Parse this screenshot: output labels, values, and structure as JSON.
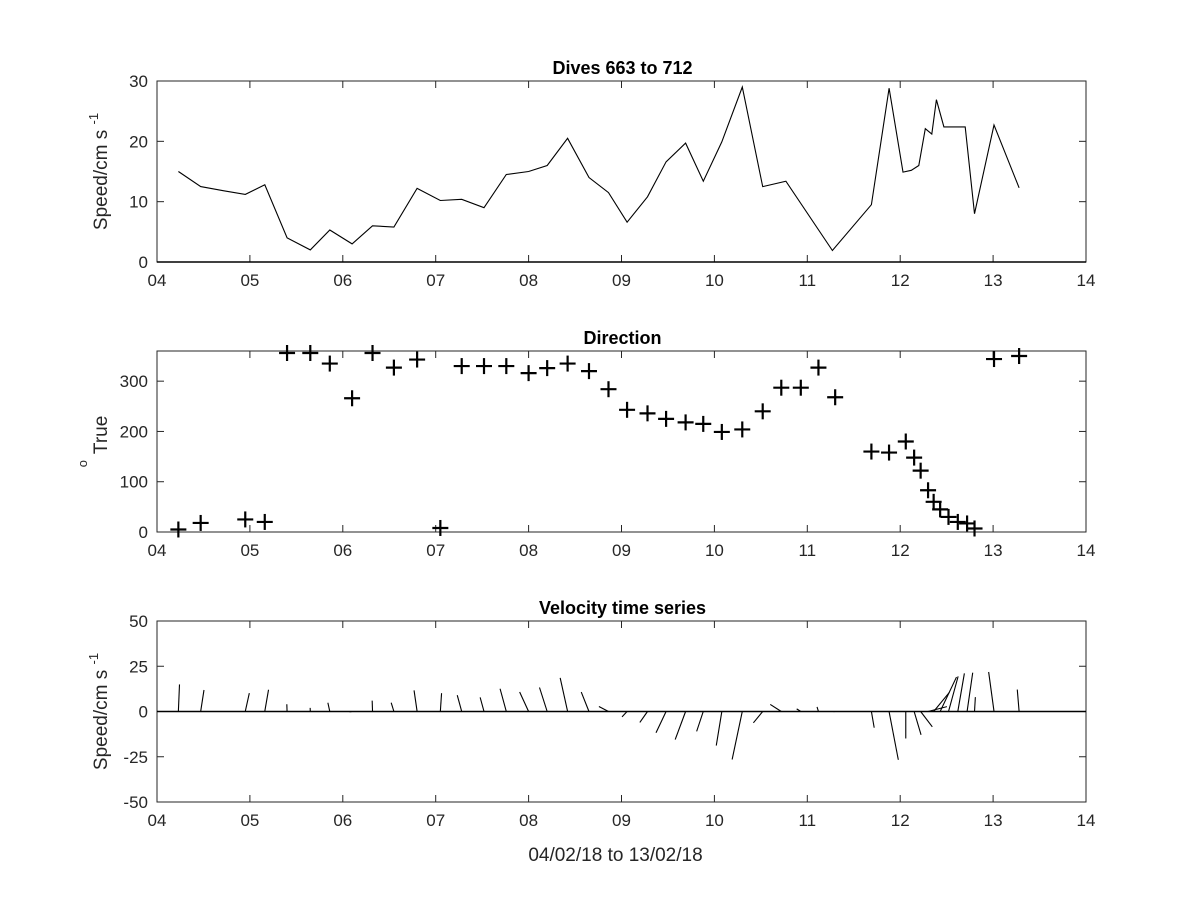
{
  "chart_data": [
    {
      "type": "line",
      "title": "Dives 663 to 712",
      "ylabel_main": "Speed/cm s",
      "ylabel_sup": "-1",
      "xlabel": "",
      "xlim": [
        4,
        14
      ],
      "ylim": [
        0,
        30
      ],
      "xticks": [
        4,
        5,
        6,
        7,
        8,
        9,
        10,
        11,
        12,
        13,
        14
      ],
      "xticklabels": [
        "04",
        "05",
        "06",
        "07",
        "08",
        "09",
        "10",
        "11",
        "12",
        "13",
        "14"
      ],
      "yticks": [
        0,
        10,
        20,
        30
      ],
      "yticklabels": [
        "0",
        "10",
        "20",
        "30"
      ],
      "zero_line": true,
      "series": [
        {
          "x": [
            4.23,
            4.47,
            4.72,
            4.95,
            5.16,
            5.4,
            5.65,
            5.86,
            6.1,
            6.32,
            6.55,
            6.8,
            7.05,
            7.28,
            7.52,
            7.76,
            8.0,
            8.2,
            8.42,
            8.65,
            8.86,
            9.06,
            9.28,
            9.48,
            9.69,
            9.88,
            10.08,
            10.3,
            10.52,
            10.77,
            11.27,
            11.69,
            11.88,
            12.03,
            12.12,
            12.2,
            12.27,
            12.34,
            12.39,
            12.47,
            12.55,
            12.7,
            12.8,
            13.01,
            13.28
          ],
          "y": [
            15,
            12.5,
            11.8,
            11.2,
            12.8,
            4,
            2,
            5.3,
            3,
            6,
            5.8,
            12.2,
            10.2,
            10.4,
            9,
            14.5,
            15,
            16,
            20.5,
            14,
            11.5,
            6.6,
            10.8,
            16.6,
            19.7,
            13.4,
            19.9,
            29,
            12.5,
            13.4,
            1.9,
            9.5,
            28.8,
            14.9,
            15.2,
            16,
            22.1,
            21.2,
            26.9,
            22.4,
            22.4,
            22.4,
            8,
            22.7,
            12.3
          ]
        }
      ]
    },
    {
      "type": "scatter",
      "title": "Direction",
      "ylabel_main": "True",
      "ylabel_sup": "o",
      "xlabel": "",
      "xlim": [
        4,
        14
      ],
      "ylim": [
        0,
        360
      ],
      "xticks": [
        4,
        5,
        6,
        7,
        8,
        9,
        10,
        11,
        12,
        13,
        14
      ],
      "xticklabels": [
        "04",
        "05",
        "06",
        "07",
        "08",
        "09",
        "10",
        "11",
        "12",
        "13",
        "14"
      ],
      "yticks": [
        0,
        100,
        200,
        300
      ],
      "yticklabels": [
        "0",
        "100",
        "200",
        "300"
      ],
      "marker": "+",
      "series": [
        {
          "x": [
            4.23,
            4.47,
            4.95,
            5.16,
            5.4,
            5.65,
            5.86,
            6.1,
            6.32,
            6.55,
            6.8,
            7.05,
            7.28,
            7.52,
            7.76,
            8.0,
            8.2,
            8.42,
            8.65,
            8.86,
            9.06,
            9.28,
            9.48,
            9.69,
            9.88,
            10.08,
            10.3,
            10.52,
            10.72,
            10.93,
            11.12,
            11.3,
            11.69,
            11.88,
            12.06,
            12.15,
            12.22,
            12.3,
            12.36,
            12.43,
            12.52,
            12.62,
            12.72,
            12.8,
            13.01,
            13.28
          ],
          "y": [
            5,
            18,
            25,
            20,
            356,
            356,
            335,
            266,
            356,
            327,
            343,
            8,
            330,
            330,
            330,
            316,
            326,
            335,
            320,
            284,
            243,
            236,
            225,
            218,
            215,
            199,
            204,
            240,
            287,
            287,
            327,
            268,
            160,
            158,
            180,
            148,
            122,
            83,
            60,
            45,
            30,
            20,
            17,
            7,
            344,
            350
          ]
        }
      ]
    },
    {
      "type": "line",
      "subtype": "stick-plot",
      "title": "Velocity time series",
      "ylabel_main": "Speed/cm s",
      "ylabel_sup": "-1",
      "xlabel": "04/02/18 to 13/02/18",
      "xlim": [
        4,
        14
      ],
      "ylim": [
        -50,
        50
      ],
      "xticks": [
        4,
        5,
        6,
        7,
        8,
        9,
        10,
        11,
        12,
        13,
        14
      ],
      "xticklabels": [
        "04",
        "05",
        "06",
        "07",
        "08",
        "09",
        "10",
        "11",
        "12",
        "13",
        "14"
      ],
      "yticks": [
        -50,
        -25,
        0,
        25,
        50
      ],
      "yticklabels": [
        "-50",
        "-25",
        "0",
        "25",
        "50"
      ],
      "zero_line": true,
      "stick_x_scale_days_per_unit": 0.00925,
      "series": [
        {
          "x": [
            4.23,
            4.47,
            4.95,
            5.16,
            5.4,
            5.65,
            5.86,
            6.1,
            6.32,
            6.55,
            6.8,
            7.05,
            7.28,
            7.52,
            7.76,
            8.0,
            8.2,
            8.42,
            8.65,
            8.86,
            9.06,
            9.28,
            9.48,
            9.69,
            9.88,
            10.08,
            10.3,
            10.52,
            10.72,
            10.93,
            11.12,
            11.3,
            11.69,
            11.88,
            12.06,
            12.15,
            12.22,
            12.3,
            12.36,
            12.43,
            12.52,
            12.62,
            12.72,
            12.8,
            13.01,
            13.28
          ],
          "speed": [
            15,
            12.5,
            11.2,
            12.8,
            4,
            2,
            5.3,
            3,
            6,
            5.8,
            12.2,
            10.2,
            10.4,
            9,
            14.5,
            15,
            16,
            20.5,
            14,
            11.5,
            6.6,
            10.8,
            16.6,
            19.7,
            13.4,
            19.9,
            29,
            12.5,
            13.4,
            5,
            3,
            1.9,
            9.5,
            28.8,
            14.9,
            15.2,
            16,
            22.1,
            21.2,
            26.9,
            22.4,
            22.4,
            22.4,
            8,
            22.7,
            12.3
          ],
          "direction": [
            5,
            18,
            25,
            20,
            356,
            356,
            335,
            266,
            356,
            327,
            343,
            8,
            330,
            330,
            330,
            316,
            326,
            335,
            320,
            284,
            243,
            236,
            225,
            218,
            215,
            199,
            204,
            240,
            287,
            287,
            327,
            268,
            160,
            158,
            180,
            148,
            122,
            83,
            60,
            45,
            30,
            20,
            17,
            7,
            344,
            350
          ]
        }
      ]
    }
  ]
}
